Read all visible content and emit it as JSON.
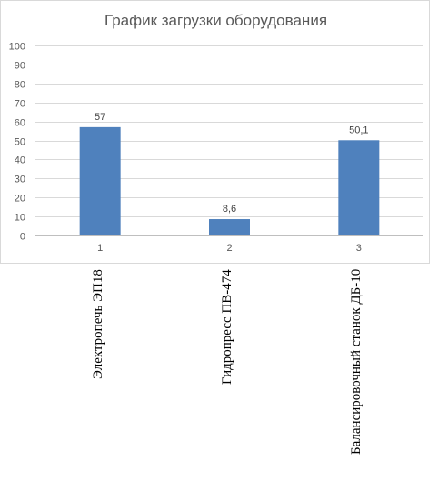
{
  "chart_data": {
    "type": "bar",
    "title": "График загрузки оборудования",
    "categories": [
      "1",
      "2",
      "3"
    ],
    "values": [
      57,
      8.6,
      50.1
    ],
    "data_labels": [
      "57",
      "8,6",
      "50,1"
    ],
    "ylim": [
      0,
      100
    ],
    "yticks": [
      0,
      10,
      20,
      30,
      40,
      50,
      60,
      70,
      80,
      90,
      100
    ],
    "grid": true,
    "bar_color": "#4f81bd"
  },
  "equipment_labels": [
    "Электропечь ЭП18",
    "Гидропресс ПВ-474",
    "Балансировочный станок ДБ-10"
  ]
}
